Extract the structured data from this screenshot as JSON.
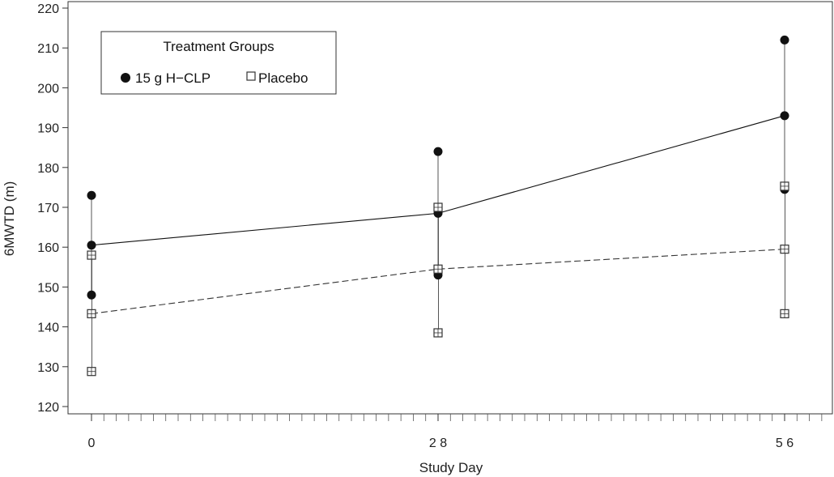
{
  "chart_data": {
    "type": "line",
    "xlabel": "Study Day",
    "ylabel": "6MWTD (m)",
    "ylim": [
      118,
      222
    ],
    "xlim": [
      0,
      60
    ],
    "x_ticks": [
      {
        "value": 0,
        "label": "0"
      },
      {
        "value": 28,
        "label": "2 8"
      },
      {
        "value": 56,
        "label": "5 6"
      }
    ],
    "y_ticks": [
      120,
      130,
      140,
      150,
      160,
      170,
      180,
      190,
      200,
      210,
      220
    ],
    "y_tick_labels": [
      "120",
      "130",
      "140",
      "150",
      "160",
      "170",
      "180",
      "190",
      "200",
      "210",
      "220"
    ],
    "minor_x_ticks": true,
    "grid": false,
    "legend": {
      "title": "Treatment Groups",
      "placement": "top-left",
      "entries": [
        "15 g H−CLP",
        "Placebo"
      ]
    },
    "series": [
      {
        "name": "15 g H−CLP",
        "marker": "filled-circle",
        "line_style": "solid",
        "color": "#111111",
        "x": [
          0,
          28,
          56
        ],
        "mean": [
          160.5,
          168.5,
          193.0
        ],
        "lower": [
          148.0,
          153.0,
          174.5
        ],
        "upper": [
          173.0,
          184.0,
          212.0
        ]
      },
      {
        "name": "Placebo",
        "marker": "open-square",
        "line_style": "dashed",
        "color": "#333333",
        "x": [
          0,
          28,
          56
        ],
        "mean": [
          143.3,
          154.5,
          159.5
        ],
        "lower": [
          128.8,
          138.5,
          143.3
        ],
        "upper": [
          158.0,
          170.0,
          175.3
        ]
      }
    ]
  }
}
